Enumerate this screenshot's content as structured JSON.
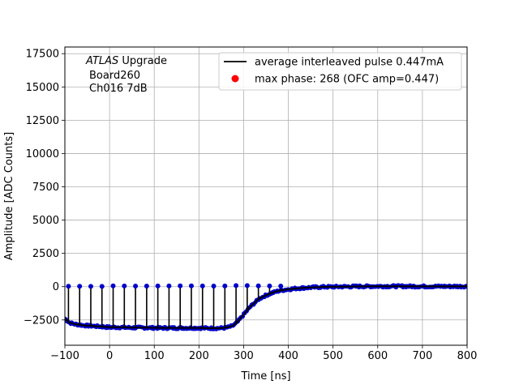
{
  "chart_data": {
    "type": "scatter",
    "title": "",
    "xlabel": "Time [ns]",
    "ylabel": "Amplitude [ADC Counts]",
    "xlim": [
      -100,
      800
    ],
    "ylim": [
      -4400,
      18000
    ],
    "xticks": [
      "−100",
      "0",
      "100",
      "200",
      "300",
      "400",
      "500",
      "600",
      "700",
      "800"
    ],
    "yticks": [
      "−2500",
      "0",
      "2500",
      "5000",
      "7500",
      "10000",
      "12500",
      "15000",
      "17500"
    ],
    "xtick_values": [
      -100,
      0,
      100,
      200,
      300,
      400,
      500,
      600,
      700,
      800
    ],
    "ytick_values": [
      -2500,
      0,
      2500,
      5000,
      7500,
      10000,
      12500,
      15000,
      17500
    ],
    "grid": true,
    "legend_position": "top-right",
    "annotation": {
      "line1_italic": "ATLAS",
      "line1_rest": " Upgrade",
      "line2": "Board260",
      "line3": "Ch016 7dB"
    },
    "series": [
      {
        "name": "average interleaved pulse 0.447mA",
        "kind": "line",
        "color": "#000000",
        "x": [
          -100,
          -90,
          -80,
          -60,
          -40,
          -20,
          0,
          20,
          50,
          80,
          110,
          140,
          170,
          200,
          220,
          240,
          255,
          265,
          275,
          285,
          295,
          305,
          315,
          325,
          335,
          350,
          365,
          380,
          400,
          420,
          450,
          480,
          520,
          560,
          600,
          650,
          700,
          750,
          800
        ],
        "y": [
          -2400,
          -2700,
          -2800,
          -2900,
          -2950,
          -3000,
          -3050,
          -3050,
          -3080,
          -3080,
          -3100,
          -3100,
          -3100,
          -3100,
          -3120,
          -3120,
          -3100,
          -3050,
          -2950,
          -2700,
          -2300,
          -1900,
          -1500,
          -1200,
          -900,
          -650,
          -450,
          -300,
          -200,
          -120,
          -60,
          -20,
          0,
          20,
          30,
          30,
          20,
          20,
          20
        ]
      },
      {
        "name": "max phase: 268 (OFC amp=0.447)",
        "kind": "marker",
        "color": "#ff0000",
        "x": [],
        "y": []
      },
      {
        "name": "",
        "kind": "samples",
        "color": "#0000cc",
        "stem_color": "#000000",
        "peak_x": [
          -92,
          -67,
          -42,
          -17,
          8,
          33,
          58,
          83,
          108,
          133,
          158,
          183,
          208,
          233,
          258,
          283,
          308,
          333,
          358,
          383
        ],
        "peak_y": [
          30,
          30,
          20,
          20,
          60,
          50,
          40,
          40,
          50,
          50,
          60,
          60,
          50,
          40,
          50,
          80,
          80,
          60,
          50,
          40
        ]
      }
    ]
  },
  "colors": {
    "axes": "#000000",
    "grid": "#b0b0b0",
    "samples": "#0000cc",
    "pulse": "#000000",
    "max_phase": "#ff0000"
  }
}
